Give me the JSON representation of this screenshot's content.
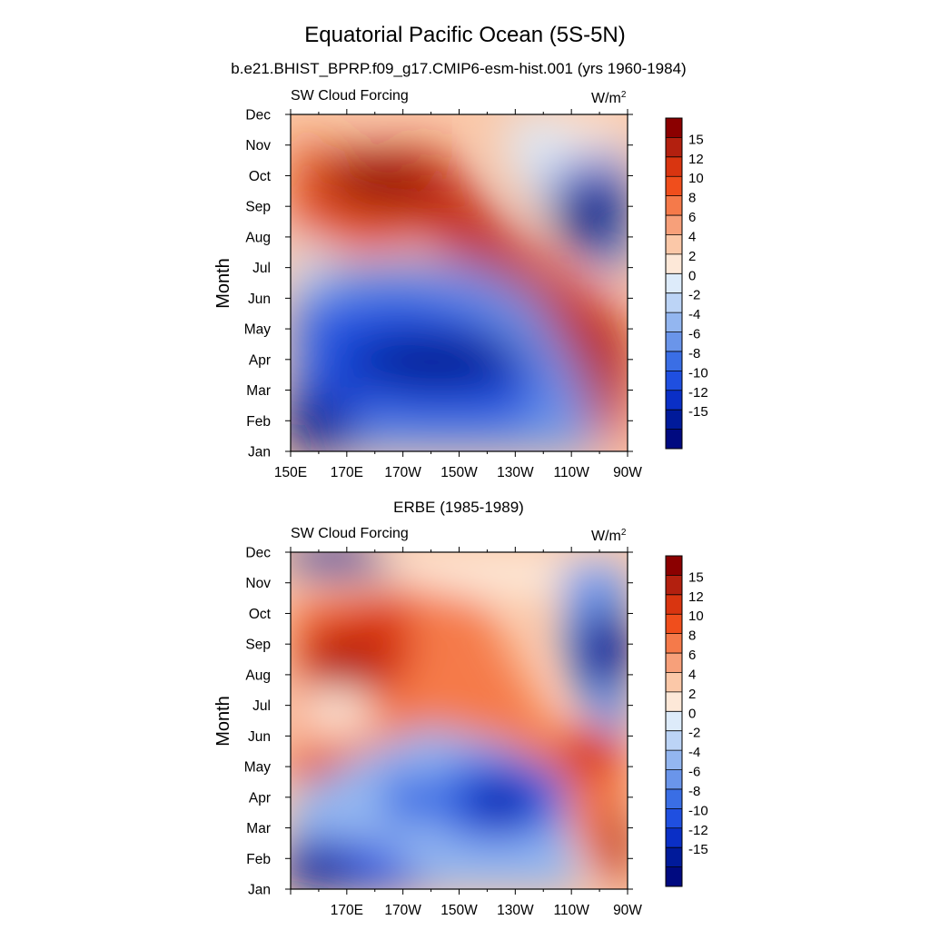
{
  "figure": {
    "title": "Equatorial Pacific Ocean (5S-5N)",
    "subtitle": "b.e21.BHIST_BPRP.f09_g17.CMIP6-esm-hist.001 (yrs 1960-1984)"
  },
  "colorbar": {
    "labels": [
      "15",
      "12",
      "10",
      "8",
      "6",
      "4",
      "2",
      "0",
      "-2",
      "-4",
      "-6",
      "-8",
      "-10",
      "-12",
      "-15"
    ],
    "colors_top_to_bottom": [
      "#8b0000",
      "#b3200f",
      "#d93510",
      "#f04e1c",
      "#f57a4a",
      "#f7a07a",
      "#fbc8a8",
      "#fde8d8",
      "#ddebfa",
      "#bcd4f6",
      "#93b6f0",
      "#6a95ea",
      "#3a6ee5",
      "#1f4fe0",
      "#0a2fc6",
      "#001a9a",
      "#000a80"
    ]
  },
  "chart_data": [
    {
      "type": "heatmap",
      "title": "",
      "left_label": "SW Cloud Forcing",
      "units": "W/m2",
      "xlabel": "",
      "ylabel": "Month",
      "x_tick_labels": [
        "150E",
        "170E",
        "170W",
        "150W",
        "130W",
        "110W",
        "90W"
      ],
      "y_tick_labels": [
        "Jan",
        "Feb",
        "Mar",
        "Apr",
        "May",
        "Jun",
        "Jul",
        "Aug",
        "Sep",
        "Oct",
        "Nov",
        "Dec"
      ],
      "x_range": [
        "150E",
        "90W"
      ],
      "y_range": [
        "Jan",
        "Dec"
      ],
      "contour_levels": [
        -15,
        -12,
        -10,
        -8,
        -6,
        -4,
        -2,
        0,
        2,
        4,
        6,
        8,
        10,
        12,
        15
      ],
      "features": [
        {
          "lon_center": 205,
          "month": 3.1,
          "value": -15
        },
        {
          "lon_center": 152,
          "month": 0.2,
          "value": -15
        },
        {
          "lon_center": 255,
          "month": 7.9,
          "value": -15
        },
        {
          "lon_center": 185,
          "month": 8.4,
          "value": 15
        },
        {
          "lon_center": 268,
          "month": 2.3,
          "value": 14
        }
      ]
    },
    {
      "type": "heatmap",
      "title": "ERBE (1985-1989)",
      "left_label": "SW Cloud Forcing",
      "units": "W/m2",
      "xlabel": "",
      "ylabel": "Month",
      "x_tick_labels": [
        "170E",
        "170W",
        "150W",
        "130W",
        "110W",
        "90W"
      ],
      "y_tick_labels": [
        "Jan",
        "Feb",
        "Mar",
        "Apr",
        "May",
        "Jun",
        "Jul",
        "Aug",
        "Sep",
        "Oct",
        "Nov",
        "Dec"
      ],
      "x_range": [
        "150E",
        "90W"
      ],
      "y_range": [
        "Jan",
        "Dec"
      ],
      "contour_levels": [
        -15,
        -12,
        -10,
        -8,
        -6,
        -4,
        -2,
        0,
        2,
        4,
        6,
        8,
        10,
        12,
        15
      ],
      "features": [
        {
          "lon_center": 225,
          "month": 3.0,
          "value": -15
        },
        {
          "lon_center": 170,
          "month": 11.0,
          "value": -15
        },
        {
          "lon_center": 265,
          "month": 8.0,
          "value": -15
        },
        {
          "lon_center": 175,
          "month": 7.5,
          "value": 12
        },
        {
          "lon_center": 262,
          "month": 4.5,
          "value": 12
        }
      ]
    }
  ]
}
